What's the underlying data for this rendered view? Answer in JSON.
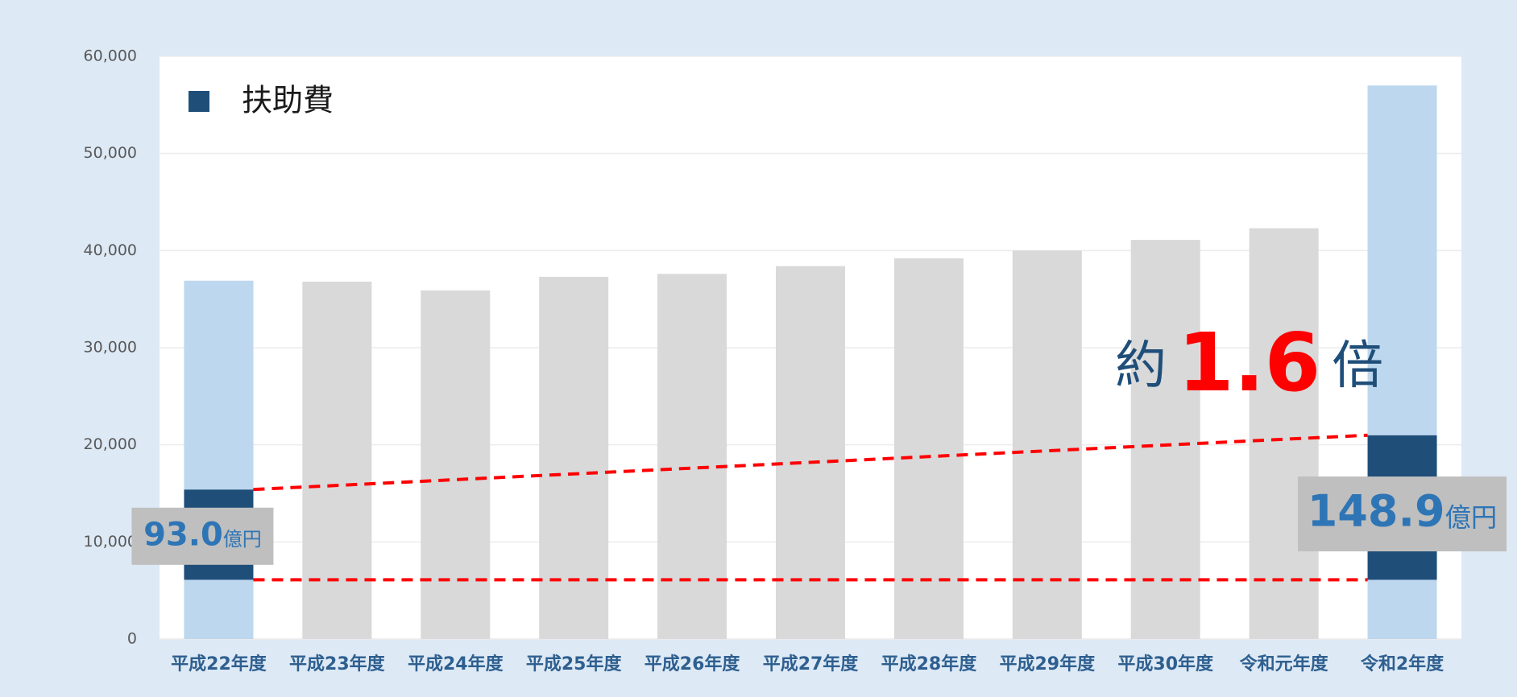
{
  "chart_data": {
    "type": "stacked_bar",
    "categories": [
      "平成22年度",
      "平成23年度",
      "平成24年度",
      "平成25年度",
      "平成26年度",
      "平成27年度",
      "平成28年度",
      "平成29年度",
      "平成30年度",
      "令和元年度",
      "令和2年度"
    ],
    "series": [
      {
        "colors": [
          "#bdd7ee",
          "#d9d9d9",
          "#d9d9d9",
          "#d9d9d9",
          "#d9d9d9",
          "#d9d9d9",
          "#d9d9d9",
          "#d9d9d9",
          "#d9d9d9",
          "#d9d9d9",
          "#bdd7ee"
        ],
        "values": [
          6100,
          36800,
          35900,
          37300,
          37600,
          38400,
          39200,
          40000,
          41100,
          42300,
          6100
        ]
      },
      {
        "name": "扶助費",
        "color": "#1f4e79",
        "values": [
          9300,
          null,
          null,
          null,
          null,
          null,
          null,
          null,
          null,
          null,
          14890
        ],
        "value_labels": [
          "93.0",
          null,
          null,
          null,
          null,
          null,
          null,
          null,
          null,
          null,
          "148.9"
        ],
        "value_label_unit": "億円"
      },
      {
        "color": "#bdd7ee",
        "values": [
          21500,
          null,
          null,
          null,
          null,
          null,
          null,
          null,
          null,
          null,
          36010
        ]
      }
    ],
    "ylim": [
      0,
      60000
    ],
    "yticks": [
      0,
      {
        "value": 10000,
        "label": "10,000"
      },
      {
        "value": 20000,
        "label": "20,000"
      },
      {
        "value": 30000,
        "label": "30,000"
      },
      {
        "value": 40000,
        "label": "40,000"
      },
      {
        "value": 50000,
        "label": "50,000"
      },
      {
        "value": 60000,
        "label": "60,000"
      }
    ],
    "grid": true,
    "legend": "upper left",
    "annotation": {
      "prefix": "約",
      "value": "1.6",
      "suffix": "倍"
    }
  }
}
